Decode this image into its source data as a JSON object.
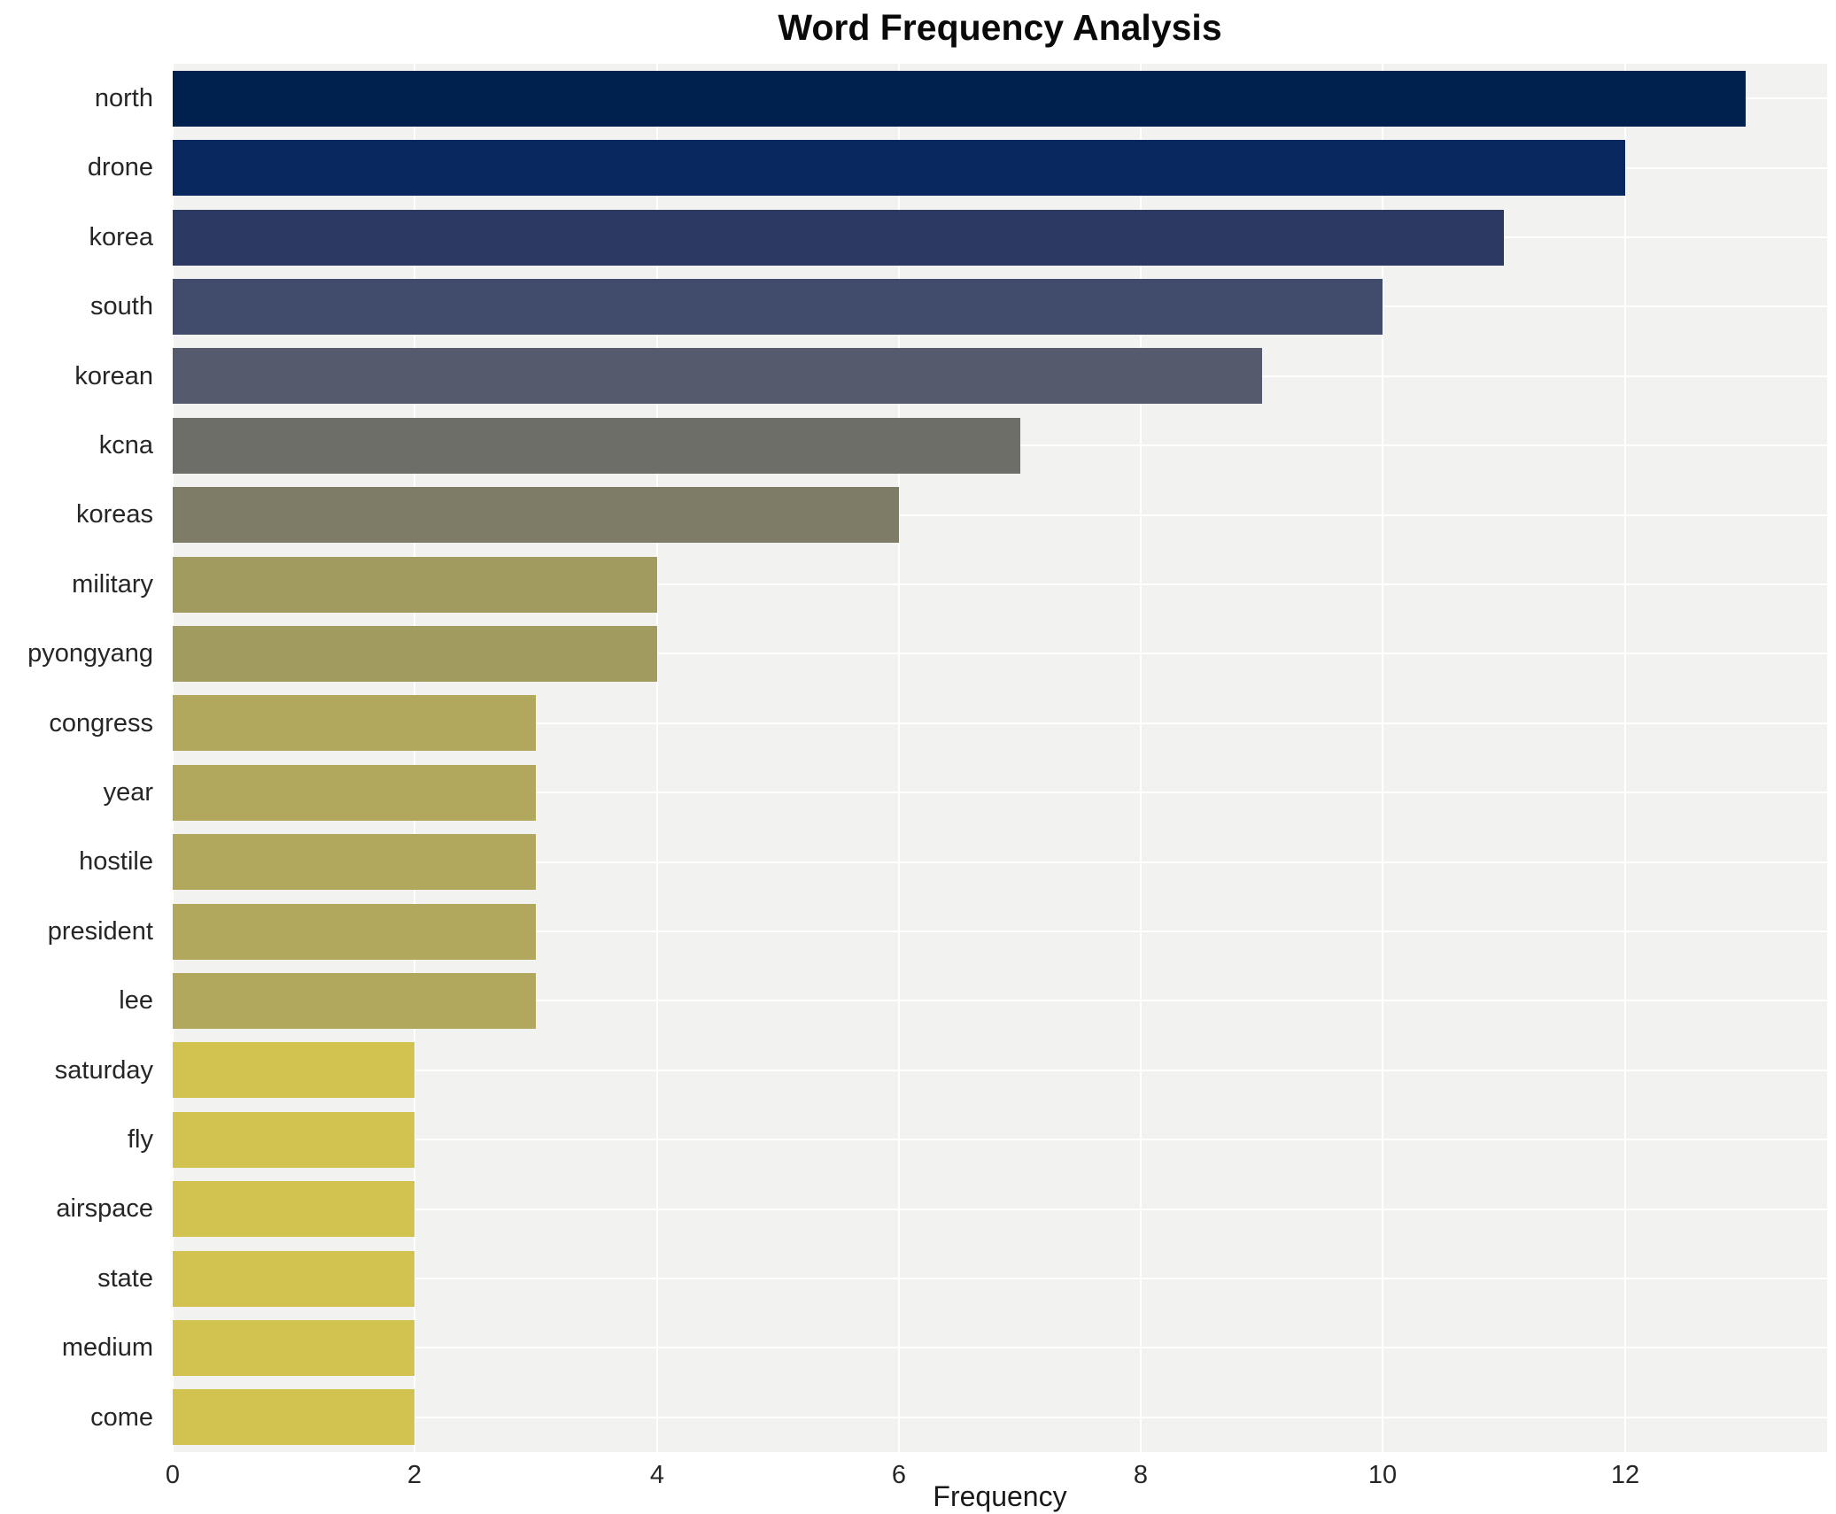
{
  "chart_data": {
    "type": "bar",
    "orientation": "horizontal",
    "title": "Word Frequency Analysis",
    "xlabel": "Frequency",
    "ylabel": "",
    "categories": [
      "north",
      "drone",
      "korea",
      "south",
      "korean",
      "kcna",
      "koreas",
      "military",
      "pyongyang",
      "congress",
      "year",
      "hostile",
      "president",
      "lee",
      "saturday",
      "fly",
      "airspace",
      "state",
      "medium",
      "come"
    ],
    "values": [
      13,
      12,
      11,
      10,
      9,
      7,
      6,
      4,
      4,
      3,
      3,
      3,
      3,
      3,
      2,
      2,
      2,
      2,
      2,
      2
    ],
    "colors": [
      "#00204e",
      "#08285f",
      "#2c3a63",
      "#414b6b",
      "#555a6c",
      "#6e6e68",
      "#7e7b66",
      "#a29b5f",
      "#a29b5f",
      "#b2a85d",
      "#b2a85d",
      "#b2a85d",
      "#b2a85d",
      "#b2a85d",
      "#d2c350",
      "#d2c350",
      "#d2c350",
      "#d2c350",
      "#d2c350",
      "#d2c350"
    ],
    "xlim": [
      0,
      13.67
    ],
    "xticks": [
      0,
      2,
      4,
      6,
      8,
      10,
      12
    ],
    "grid": true,
    "legend": "none",
    "plot_bg": "#f2f2f0",
    "gridline_color": "#ffffff"
  }
}
